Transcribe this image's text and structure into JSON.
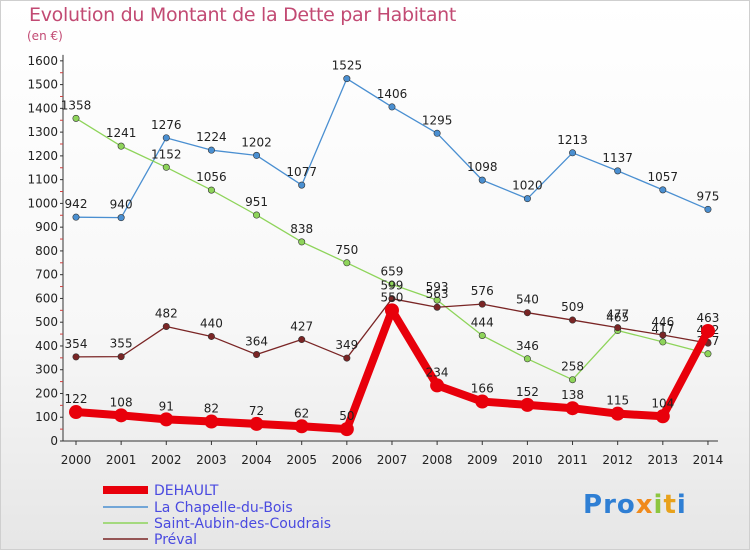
{
  "title": "Evolution du Montant de la Dette par Habitant",
  "subtitle": "(en €)",
  "logo": "Proxiti",
  "chart_data": {
    "type": "line",
    "title": "Evolution du Montant de la Dette par Habitant",
    "subtitle": "(en €)",
    "xlabel": "",
    "ylabel": "",
    "ylim": [
      0,
      1600
    ],
    "yticks": [
      0,
      100,
      200,
      300,
      400,
      500,
      600,
      700,
      800,
      900,
      1000,
      1100,
      1200,
      1300,
      1400,
      1500,
      1600
    ],
    "x": [
      "2000",
      "2001",
      "2002",
      "2003",
      "2004",
      "2005",
      "2006",
      "2007",
      "2008",
      "2009",
      "2010",
      "2011",
      "2012",
      "2013",
      "2014"
    ],
    "grid": false,
    "legend": "bottom-left",
    "series": [
      {
        "name": "DEHAULT",
        "color": "#e8000b",
        "values": [
          122,
          108,
          91,
          82,
          72,
          62,
          50,
          550,
          234,
          166,
          152,
          138,
          115,
          104,
          463
        ]
      },
      {
        "name": "La Chapelle-du-Bois",
        "color": "#4a8fd1",
        "values": [
          942,
          940,
          1276,
          1224,
          1202,
          1077,
          1525,
          1406,
          1295,
          1098,
          1020,
          1213,
          1137,
          1057,
          975
        ]
      },
      {
        "name": "Saint-Aubin-des-Coudrais",
        "color": "#8ed45a",
        "values": [
          1358,
          1241,
          1152,
          1056,
          951,
          838,
          750,
          659,
          593,
          444,
          346,
          258,
          465,
          417,
          367
        ]
      },
      {
        "name": "Préval",
        "color": "#7a2525",
        "values": [
          354,
          355,
          482,
          440,
          364,
          427,
          349,
          599,
          563,
          576,
          540,
          509,
          477,
          446,
          412
        ]
      }
    ]
  }
}
